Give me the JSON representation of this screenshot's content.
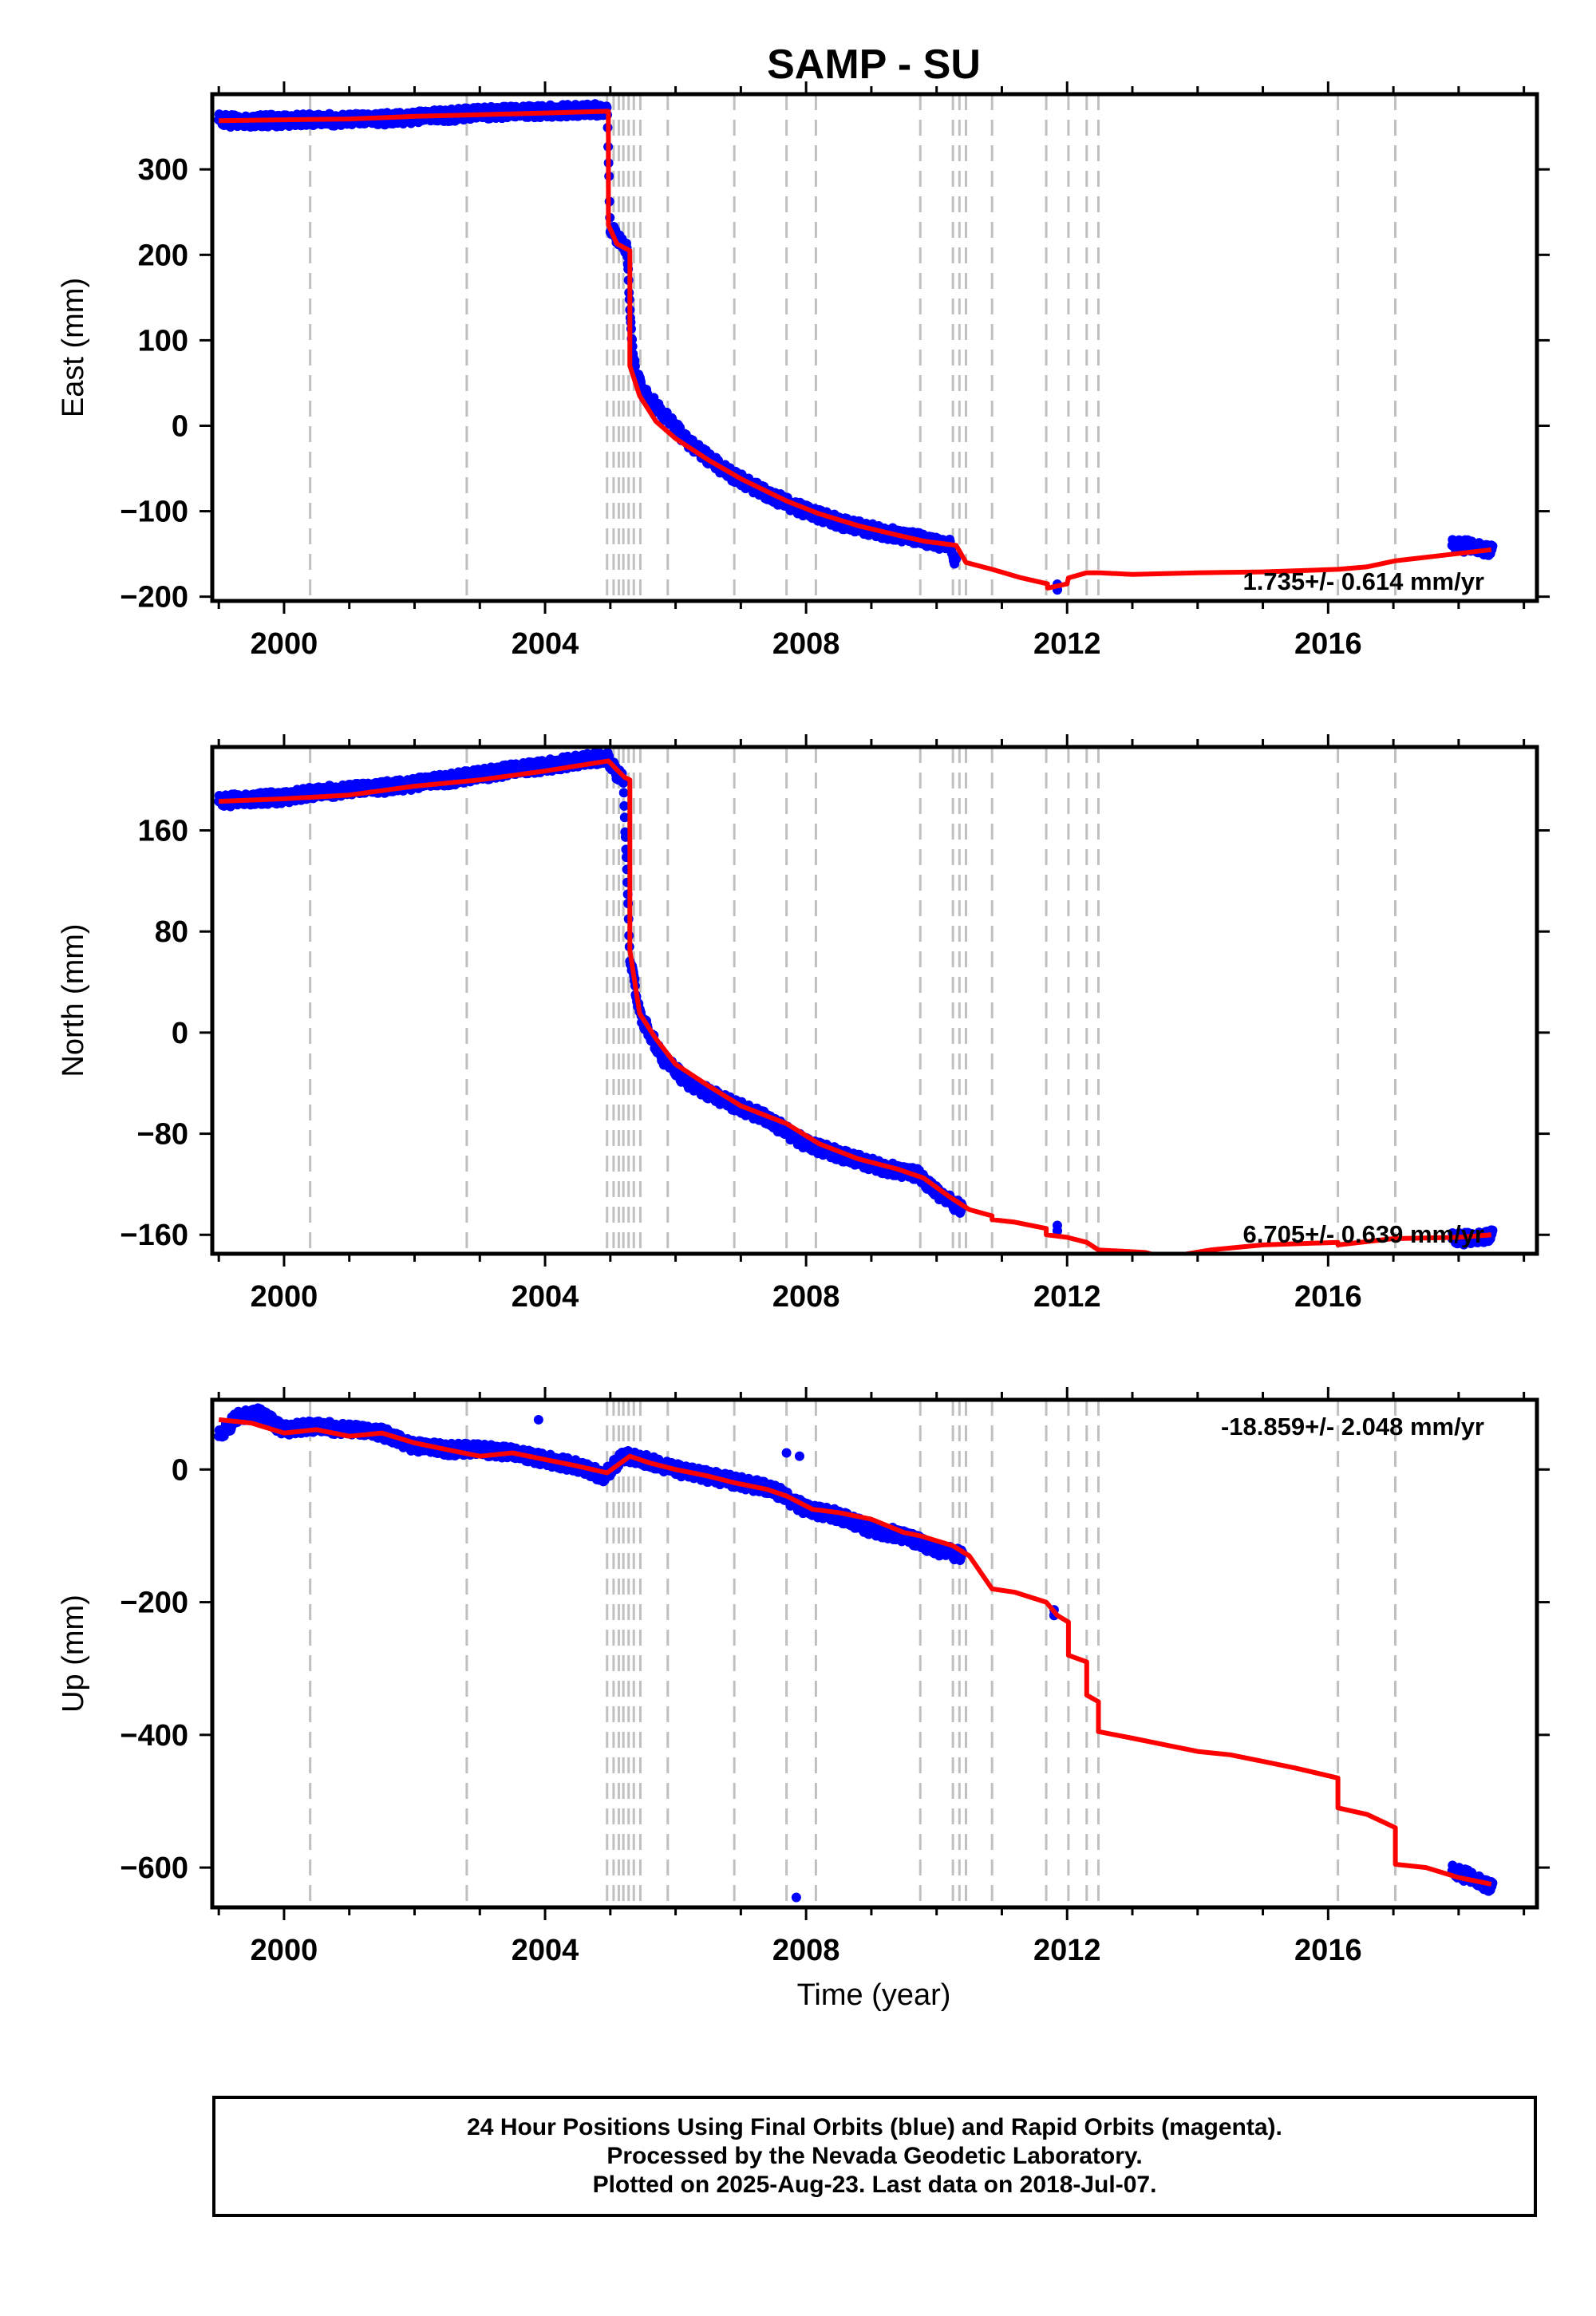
{
  "title": "SAMP - SU",
  "xlabel": "Time (year)",
  "colors": {
    "data": "#0000ff",
    "model": "#ff0000",
    "events": "#c0c0c0",
    "frame": "#000000"
  },
  "footer": {
    "line1": "24 Hour Positions Using Final Orbits (blue) and Rapid Orbits (magenta).",
    "line2": "Processed by the Nevada Geodetic Laboratory.",
    "line3": "Plotted on 2025-Aug-23. Last data on 2018-Jul-07."
  },
  "chart_data": [
    {
      "type": "scatter",
      "panel": "east",
      "ylabel": "East (mm)",
      "xlim": [
        1998.9,
        2019.2
      ],
      "ylim": [
        -205,
        388
      ],
      "xticks": [
        2000,
        2004,
        2008,
        2012,
        2016
      ],
      "yticks": [
        -200,
        -100,
        0,
        100,
        200,
        300
      ],
      "ytick_labels": [
        "−200",
        "−100",
        "0",
        "100",
        "200",
        "300"
      ],
      "rate_label": "1.735+/- 0.614 mm/yr",
      "event_lines": [
        2000.4,
        2002.8,
        2004.95,
        2005.05,
        2005.13,
        2005.2,
        2005.28,
        2005.36,
        2005.46,
        2005.88,
        2006.9,
        2007.7,
        2008.15,
        2009.75,
        2010.25,
        2010.35,
        2010.45,
        2010.85,
        2011.68,
        2012.02,
        2012.3,
        2012.48,
        2016.15,
        2017.03
      ],
      "series": [
        {
          "role": "observed",
          "x": [
            1999.0,
            1999.3,
            1999.6,
            2000.0,
            2000.5,
            2001.0,
            2001.5,
            2002.0,
            2002.5,
            2003.0,
            2003.5,
            2004.0,
            2004.5,
            2004.95,
            2005.0,
            2005.15,
            2005.25,
            2005.35,
            2005.5,
            2005.8,
            2006.2,
            2006.8,
            2007.4,
            2008.0,
            2008.6,
            2009.2,
            2009.8,
            2010.2,
            2010.3,
            2011.85,
            2017.9,
            2018.2,
            2018.52
          ],
          "y": [
            358,
            356,
            357,
            357,
            358,
            358,
            359,
            361,
            363,
            366,
            367,
            368,
            369,
            370,
            232,
            215,
            207,
            75,
            40,
            15,
            -20,
            -55,
            -80,
            -100,
            -115,
            -125,
            -133,
            -140,
            -160,
            -192,
            -140,
            -141,
            -146
          ]
        },
        {
          "role": "model",
          "x": [
            1999.0,
            2000.0,
            2001.0,
            2002.0,
            2003.0,
            2004.0,
            2004.97,
            2004.97,
            2005.1,
            2005.22,
            2005.3,
            2005.3,
            2005.45,
            2005.7,
            2006.0,
            2006.5,
            2007.0,
            2007.7,
            2008.2,
            2008.8,
            2009.4,
            2009.8,
            2010.3,
            2010.45,
            2010.85,
            2011.3,
            2011.7,
            2011.7,
            2012.0,
            2012.02,
            2012.3,
            2012.5,
            2013.0,
            2014.0,
            2015.0,
            2016.15,
            2016.6,
            2017.03,
            2017.6,
            2018.5
          ],
          "y": [
            357,
            358,
            359,
            362,
            364,
            366,
            368,
            235,
            213,
            208,
            205,
            70,
            35,
            5,
            -15,
            -40,
            -62,
            -88,
            -103,
            -117,
            -128,
            -135,
            -140,
            -160,
            -168,
            -178,
            -185,
            -190,
            -185,
            -178,
            -172,
            -172,
            -174,
            -172,
            -171,
            -168,
            -165,
            -158,
            -153,
            -145
          ]
        }
      ]
    },
    {
      "type": "scatter",
      "panel": "north",
      "ylabel": "North (mm)",
      "xlim": [
        1998.9,
        2019.2
      ],
      "ylim": [
        -175,
        226
      ],
      "xticks": [
        2000,
        2004,
        2008,
        2012,
        2016
      ],
      "yticks": [
        -160,
        -80,
        0,
        80,
        160
      ],
      "ytick_labels": [
        "−160",
        "−80",
        "0",
        "80",
        "160"
      ],
      "rate_label": "6.705+/- 0.639 mm/yr",
      "event_lines": [
        2000.4,
        2002.8,
        2004.95,
        2005.05,
        2005.13,
        2005.2,
        2005.28,
        2005.36,
        2005.46,
        2005.88,
        2006.9,
        2007.7,
        2008.15,
        2009.75,
        2010.25,
        2010.35,
        2010.45,
        2010.85,
        2011.68,
        2012.02,
        2012.3,
        2012.48,
        2016.15,
        2017.03
      ],
      "series": [
        {
          "role": "observed",
          "x": [
            1999.0,
            1999.5,
            2000.0,
            2000.5,
            2001.0,
            2001.5,
            2002.0,
            2002.5,
            2003.0,
            2003.5,
            2004.0,
            2004.5,
            2004.95,
            2005.1,
            2005.2,
            2005.3,
            2005.45,
            2005.8,
            2006.2,
            2006.8,
            2007.4,
            2008.0,
            2008.6,
            2009.2,
            2009.7,
            2010.1,
            2010.4,
            2011.85,
            2017.9,
            2018.2,
            2018.52
          ],
          "y": [
            183,
            185,
            186,
            190,
            192,
            194,
            197,
            200,
            204,
            208,
            211,
            215,
            218,
            205,
            200,
            60,
            15,
            -20,
            -40,
            -55,
            -68,
            -88,
            -98,
            -107,
            -112,
            -130,
            -140,
            -157,
            -163,
            -163,
            -160
          ]
        },
        {
          "role": "model",
          "x": [
            1999.0,
            2000.0,
            2001.0,
            2002.0,
            2003.0,
            2004.0,
            2004.97,
            2005.1,
            2005.22,
            2005.3,
            2005.3,
            2005.45,
            2005.7,
            2006.0,
            2006.5,
            2007.0,
            2007.7,
            2008.2,
            2008.8,
            2009.4,
            2009.8,
            2010.2,
            2010.5,
            2010.85,
            2010.85,
            2011.2,
            2011.68,
            2011.68,
            2012.0,
            2012.3,
            2012.48,
            2013.2,
            2013.5,
            2014.2,
            2015.0,
            2016.15,
            2016.15,
            2017.0,
            2018.0,
            2018.5
          ],
          "y": [
            183,
            185,
            188,
            195,
            200,
            207,
            215,
            208,
            202,
            200,
            65,
            15,
            -5,
            -25,
            -42,
            -58,
            -72,
            -88,
            -100,
            -108,
            -115,
            -130,
            -140,
            -145,
            -148,
            -150,
            -155,
            -160,
            -162,
            -166,
            -172,
            -174,
            -178,
            -172,
            -168,
            -166,
            -168,
            -163,
            -162,
            -160
          ]
        }
      ]
    },
    {
      "type": "scatter",
      "panel": "up",
      "ylabel": "Up (mm)",
      "xlim": [
        1998.9,
        2019.2
      ],
      "ylim": [
        -660,
        105
      ],
      "xticks": [
        2000,
        2004,
        2008,
        2012,
        2016
      ],
      "yticks": [
        -600,
        -400,
        -200,
        0
      ],
      "ytick_labels": [
        "−600",
        "−400",
        "−200",
        "0"
      ],
      "rate_label": "-18.859+/- 2.048 mm/yr",
      "event_lines": [
        2000.4,
        2002.8,
        2004.95,
        2005.05,
        2005.13,
        2005.2,
        2005.28,
        2005.36,
        2005.46,
        2005.88,
        2006.9,
        2007.7,
        2008.15,
        2009.75,
        2010.25,
        2010.35,
        2010.45,
        2010.85,
        2011.68,
        2012.02,
        2012.3,
        2012.48,
        2016.15,
        2017.03
      ],
      "outliers": {
        "x": [
          2003.9,
          2007.7,
          2007.9,
          2007.85
        ],
        "y": [
          75,
          25,
          20,
          -645
        ]
      },
      "series": [
        {
          "role": "observed",
          "x": [
            1999.0,
            1999.3,
            1999.6,
            2000.0,
            2000.5,
            2001.0,
            2001.5,
            2002.0,
            2002.5,
            2003.0,
            2003.5,
            2004.0,
            2004.5,
            2004.9,
            2005.2,
            2005.5,
            2006.0,
            2006.5,
            2007.0,
            2007.5,
            2008.0,
            2008.5,
            2009.0,
            2009.5,
            2010.0,
            2010.4,
            2011.8,
            2017.9,
            2018.2,
            2018.52
          ],
          "y": [
            50,
            80,
            85,
            60,
            65,
            60,
            55,
            35,
            30,
            30,
            25,
            15,
            5,
            -10,
            20,
            15,
            0,
            -10,
            -20,
            -30,
            -60,
            -70,
            -90,
            -100,
            -120,
            -130,
            -220,
            -605,
            -615,
            -630
          ]
        },
        {
          "role": "model",
          "x": [
            1999.0,
            1999.5,
            2000.0,
            2000.5,
            2001.0,
            2001.5,
            2002.0,
            2002.5,
            2003.0,
            2003.5,
            2004.0,
            2004.5,
            2004.95,
            2005.3,
            2005.6,
            2006.0,
            2006.5,
            2006.9,
            2007.4,
            2007.7,
            2008.1,
            2008.5,
            2009.0,
            2009.5,
            2009.75,
            2010.25,
            2010.5,
            2010.85,
            2011.2,
            2011.68,
            2011.85,
            2012.02,
            2012.02,
            2012.3,
            2012.3,
            2012.48,
            2012.48,
            2013.0,
            2013.5,
            2014.0,
            2014.5,
            2015.0,
            2015.5,
            2016.15,
            2016.15,
            2016.6,
            2017.03,
            2017.03,
            2017.5,
            2018.0,
            2018.5
          ],
          "y": [
            75,
            70,
            55,
            60,
            50,
            55,
            40,
            30,
            20,
            25,
            15,
            5,
            -5,
            20,
            10,
            0,
            -10,
            -20,
            -30,
            -40,
            -60,
            -65,
            -75,
            -95,
            -100,
            -115,
            -130,
            -180,
            -185,
            -200,
            -220,
            -230,
            -280,
            -290,
            -340,
            -350,
            -395,
            -405,
            -415,
            -425,
            -430,
            -440,
            -450,
            -465,
            -510,
            -520,
            -540,
            -595,
            -600,
            -615,
            -625
          ]
        }
      ]
    }
  ]
}
